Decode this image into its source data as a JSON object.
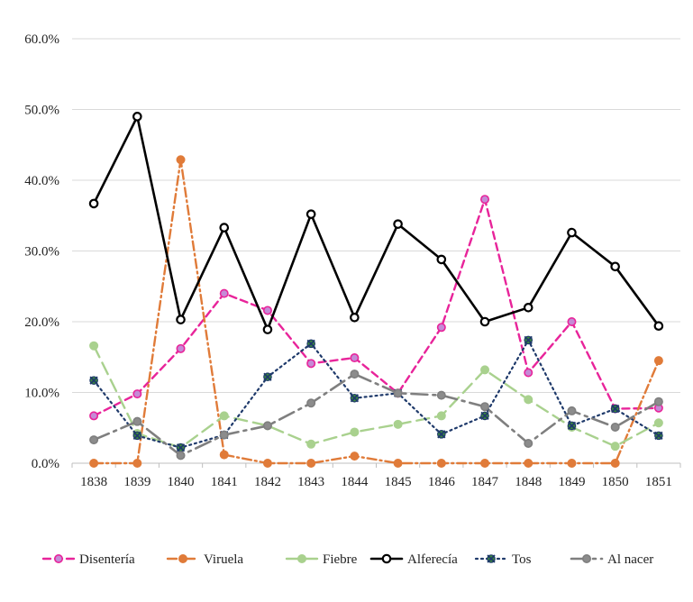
{
  "chart_data": {
    "type": "line",
    "title": "",
    "xlabel": "",
    "ylabel": "",
    "categories": [
      "1838",
      "1839",
      "1840",
      "1841",
      "1842",
      "1843",
      "1844",
      "1845",
      "1846",
      "1847",
      "1848",
      "1849",
      "1850",
      "1851"
    ],
    "ylim": [
      0,
      60
    ],
    "yticks": [
      "0.0%",
      "10.0%",
      "20.0%",
      "30.0%",
      "40.0%",
      "50.0%",
      "60.0%"
    ],
    "grid": true,
    "legend_position": "bottom",
    "series": [
      {
        "name": "Disentería",
        "color": "#e8249a",
        "marker_fill": "#c58ad6",
        "dash": "dashed",
        "marker": "circle",
        "values": [
          6.7,
          9.8,
          16.2,
          24.0,
          21.6,
          14.1,
          14.9,
          9.9,
          19.2,
          37.3,
          12.8,
          20.0,
          7.7,
          7.8
        ]
      },
      {
        "name": "Viruela",
        "color": "#e07b39",
        "marker_fill": "#e07b39",
        "dash": "dashdot",
        "marker": "circle",
        "values": [
          0.0,
          0.0,
          42.9,
          1.2,
          0.0,
          0.0,
          1.0,
          0.0,
          0.0,
          0.0,
          0.0,
          0.0,
          0.0,
          14.5
        ]
      },
      {
        "name": "Fiebre",
        "color": "#a9d18e",
        "marker_fill": "#a9d18e",
        "dash": "longdash",
        "marker": "circle",
        "values": [
          16.6,
          4.2,
          2.2,
          6.7,
          5.3,
          2.7,
          4.4,
          5.5,
          6.7,
          13.2,
          9.0,
          5.1,
          2.4,
          5.7
        ]
      },
      {
        "name": "Alferecía",
        "color": "#000000",
        "marker_fill": "#ffffff",
        "dash": "solid",
        "marker": "circle",
        "values": [
          36.7,
          49.0,
          20.3,
          33.3,
          18.9,
          35.2,
          20.6,
          33.8,
          28.8,
          20.0,
          22.0,
          32.6,
          27.8,
          19.4
        ]
      },
      {
        "name": "Tos",
        "color": "#1f3a6b",
        "marker_fill": "#3b8a3b",
        "dash": "dotted",
        "marker": "cross",
        "values": [
          11.7,
          3.9,
          2.2,
          4.0,
          12.2,
          16.9,
          9.2,
          9.9,
          4.1,
          6.7,
          17.4,
          5.3,
          7.7,
          3.9
        ]
      },
      {
        "name": "Al nacer",
        "color": "#7f7f7f",
        "marker_fill": "#8c8c8c",
        "dash": "dashdotlong",
        "marker": "circle",
        "values": [
          3.3,
          5.9,
          1.1,
          4.0,
          5.3,
          8.5,
          12.6,
          9.9,
          9.6,
          8.0,
          2.8,
          7.4,
          5.1,
          8.7
        ]
      }
    ]
  }
}
